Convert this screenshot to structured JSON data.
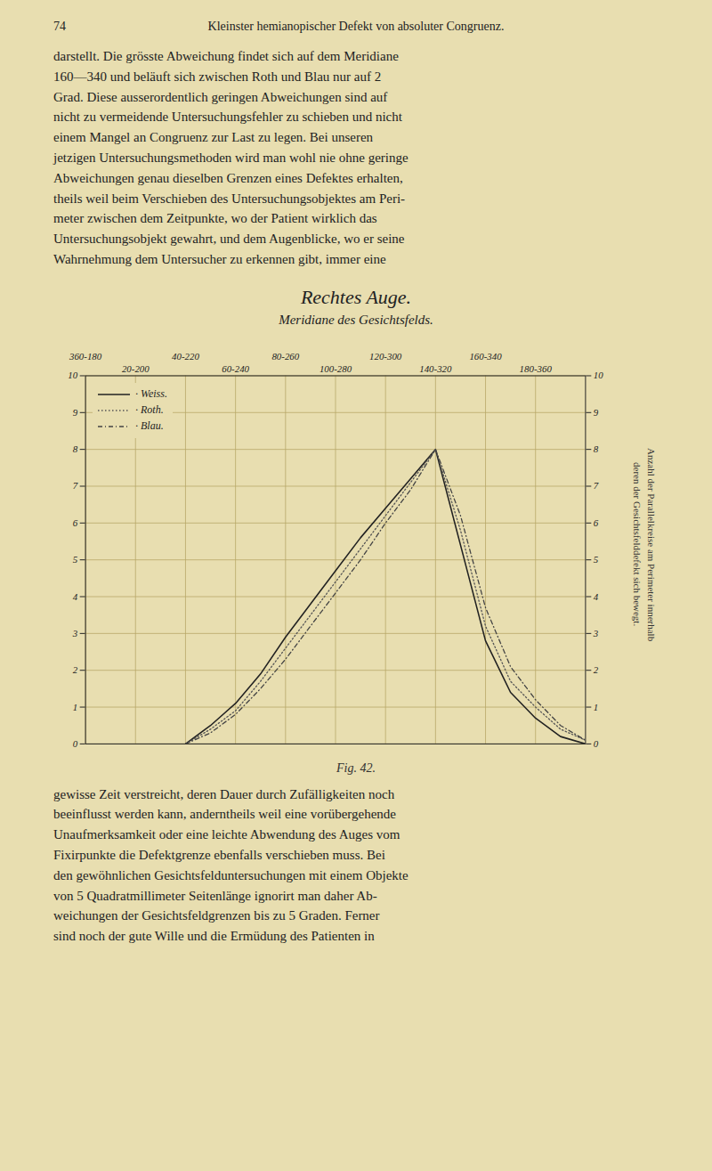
{
  "chart_data": {
    "type": "line",
    "title": "Rechtes Auge.",
    "subtitle": "Meridiane des Gesichtsfelds.",
    "x": [
      2.0,
      2.5,
      3.0,
      3.5,
      4.0,
      4.5,
      5.0,
      5.5,
      6.0,
      6.5,
      7.0,
      7.5,
      8.0,
      8.5,
      9.0,
      9.5,
      10.0
    ],
    "series": [
      {
        "name": "· Weiss.",
        "color": "#222222",
        "line_style": "solid",
        "values": [
          0.0,
          0.5,
          1.1,
          1.9,
          2.9,
          3.8,
          4.7,
          5.6,
          6.4,
          7.2,
          8.0,
          5.4,
          2.8,
          1.4,
          0.7,
          0.2,
          0.0
        ]
      },
      {
        "name": "· Roth.",
        "color": "#555555",
        "line_style": "dotted",
        "values": [
          0.0,
          0.4,
          0.9,
          1.7,
          2.6,
          3.5,
          4.4,
          5.3,
          6.2,
          7.1,
          8.0,
          5.8,
          3.2,
          1.7,
          1.0,
          0.4,
          0.1
        ]
      },
      {
        "name": "· Blau.",
        "color": "#444444",
        "line_style": "dashdot",
        "values": [
          0.0,
          0.3,
          0.8,
          1.5,
          2.3,
          3.2,
          4.1,
          5.0,
          6.0,
          6.9,
          8.0,
          6.2,
          3.7,
          2.1,
          1.2,
          0.5,
          0.1
        ]
      }
    ],
    "xlim": [
      0,
      10
    ],
    "xticks": [
      {
        "value": 0,
        "label": "360-180"
      },
      {
        "value": 1,
        "label": "20-200"
      },
      {
        "value": 2,
        "label": "40-220"
      },
      {
        "value": 3,
        "label": "60-240"
      },
      {
        "value": 4,
        "label": "80-260"
      },
      {
        "value": 5,
        "label": "100-280"
      },
      {
        "value": 6,
        "label": "120-300"
      },
      {
        "value": 7,
        "label": "140-320"
      },
      {
        "value": 8,
        "label": "160-340"
      },
      {
        "value": 9,
        "label": "180-360"
      }
    ],
    "ylim": [
      0,
      10
    ],
    "yticks": [
      0,
      1,
      2,
      3,
      4,
      5,
      6,
      7,
      8,
      9,
      10
    ],
    "grid": true,
    "legend": "upper left",
    "annotations": [
      "74",
      "Kleinster hemianopischer Defekt von absoluter Congruenz.",
      "darstellt.  Die grösste Abweichung findet sich auf dem Meridiane\n160—340 und beläuft sich zwischen Roth und Blau nur auf 2\nGrad.  Diese ausserordentlich geringen Abweichungen sind auf\nnicht zu vermeidende Untersuchungsfehler zu schieben und nicht\neinem Mangel an Congruenz zur Last zu legen.  Bei unseren\njetzigen Untersuchungsmethoden wird man wohl nie ohne geringe\nAbweichungen genau dieselben Grenzen eines Defektes erhalten,\ntheils weil beim Verschieben des Untersuchungsobjektes am Peri-\nmeter zwischen dem Zeitpunkte, wo der Patient wirklich das\nUntersuchungsobjekt gewahrt, und dem Augenblicke, wo er seine\nWahrnehmung dem Untersucher zu erkennen gibt, immer eine",
      "Fig. 42.",
      "gewisse Zeit verstreicht, deren Dauer durch Zufälligkeiten noch\nbeeinflusst werden kann, anderntheils weil eine vorübergehende\nUnaufmerksamkeit oder eine leichte Abwendung des Auges vom\nFixirpunkte die Defektgrenze ebenfalls verschieben muss.  Bei\nden gewöhnlichen Gesichtsfelduntersuchungen mit einem Objekte\nvon 5 Quadratmillimeter Seitenlänge ignorirt man daher Ab-\nweichungen der Gesichtsfeldgrenzen bis zu 5 Graden.  Ferner\nsind noch der gute Wille und die Ermüdung des Patienten in",
      "Anzahl der Parallelkreise am Perimeter innerhalb\nderen der Gesichtsfelddefekt sich bewegt."
    ]
  }
}
